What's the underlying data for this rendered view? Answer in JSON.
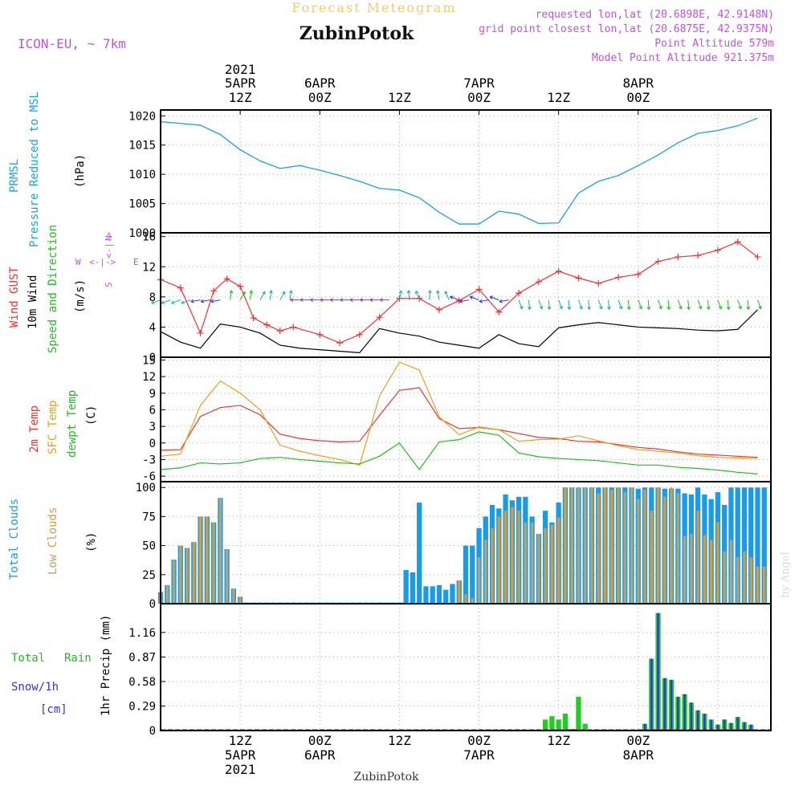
{
  "header": {
    "title": "Forecast Meteogram",
    "location": "ZubinPotok",
    "model": "ICON-EU, ~ 7km",
    "requested": "requested lon,lat (20.6898E, 42.9148N)",
    "closest": "grid point closest lon,lat (20.6875E, 42.9375N)",
    "point_alt": "Point Altitude 579m",
    "model_alt": "Model Point Altitude 921.375m",
    "credit": "by Angel",
    "bottom_location": "ZubinPotok"
  },
  "colors": {
    "pressure": "#1aa0e6",
    "gust": "#ee3333",
    "wind": "#000000",
    "wind_dir": "#22bb22",
    "t2m": "#ee3333",
    "sfc": "#e8a020",
    "dewpt": "#22bb22",
    "total_clouds": "#1a9be8",
    "low_clouds": "#c8a055",
    "rain": "#22cc22",
    "snow": "#3333dd",
    "magenta": "#bb55dd"
  },
  "time_axis": {
    "top_labels": [
      {
        "day": "2021",
        "date": "5APR",
        "hour": "12Z"
      },
      {
        "day": "",
        "date": "6APR",
        "hour": "00Z"
      },
      {
        "day": "",
        "date": "",
        "hour": "12Z"
      },
      {
        "day": "",
        "date": "7APR",
        "hour": "00Z"
      },
      {
        "day": "",
        "date": "",
        "hour": "12Z"
      },
      {
        "day": "",
        "date": "8APR",
        "hour": "00Z"
      }
    ],
    "bottom_labels": [
      {
        "hour": "12Z",
        "date": "5APR",
        "year": "2021"
      },
      {
        "hour": "00Z",
        "date": "6APR",
        "year": ""
      },
      {
        "hour": "12Z",
        "date": "",
        "year": ""
      },
      {
        "hour": "00Z",
        "date": "7APR",
        "year": ""
      },
      {
        "hour": "12Z",
        "date": "",
        "year": ""
      },
      {
        "hour": "00Z",
        "date": "8APR",
        "year": ""
      }
    ]
  },
  "panels": {
    "pressure": {
      "label1": "PRMSL",
      "label2": "Pressure Reduced to MSL",
      "unit": "(hPa)"
    },
    "wind": {
      "gust": "Wind GUST",
      "wind": "10m Wind",
      "dir": "Speed and Direction",
      "unit": "(m/s)",
      "compass_n": "N",
      "compass_s": "S",
      "compass_w": "W",
      "compass_e": "E"
    },
    "temp": {
      "t2m": "2m Temp",
      "sfc": "SFC Temp",
      "dewpt": "dewpt Temp",
      "unit": "(C)"
    },
    "clouds": {
      "total": "Total Clouds",
      "low": "Low Clouds",
      "unit": "(%)"
    },
    "precip": {
      "rain1": "Total",
      "rain2": "Rain",
      "snow": "Snow/1h",
      "snow_unit": "[cm]",
      "unit": "1hr Precip (mm)"
    }
  },
  "chart_data": [
    {
      "type": "line",
      "title": "PRMSL Pressure Reduced to MSL",
      "ylabel": "(hPa)",
      "x_unit": "hours since 2021-04-05 00Z",
      "ylim": [
        1000,
        1021
      ],
      "yticks": [
        1000,
        1005,
        1010,
        1015,
        1020
      ],
      "series": [
        {
          "name": "PRMSL",
          "x": [
            0,
            3,
            6,
            9,
            12,
            15,
            18,
            21,
            24,
            27,
            30,
            33,
            36,
            39,
            42,
            45,
            48,
            51,
            54,
            57,
            60,
            63,
            66,
            69,
            72,
            75,
            78,
            81,
            84,
            87,
            90
          ],
          "y": [
            1019,
            1018.7,
            1018.4,
            1016.8,
            1014.2,
            1012.3,
            1011.0,
            1011.5,
            1010.7,
            1009.8,
            1008.8,
            1007.6,
            1007.3,
            1006.0,
            1003.5,
            1001.5,
            1001.5,
            1003.7,
            1003.2,
            1001.6,
            1001.7,
            1006.8,
            1008.8,
            1009.8,
            1011.5,
            1013.3,
            1015.4,
            1017.0,
            1017.5,
            1018.3,
            1019.6
          ]
        }
      ]
    },
    {
      "type": "line",
      "title": "Wind GUST / 10m Wind Speed and Direction",
      "ylabel": "(m/s)",
      "ylim": [
        0,
        16.5
      ],
      "yticks": [
        0,
        4,
        8,
        12,
        16
      ],
      "series": [
        {
          "name": "Wind GUST",
          "x": [
            0,
            3,
            6,
            8,
            10,
            12,
            14,
            16,
            18,
            20,
            24,
            27,
            30,
            33,
            36,
            39,
            42,
            45,
            48,
            51,
            54,
            57,
            60,
            63,
            66,
            69,
            72,
            75,
            78,
            81,
            84,
            87,
            90
          ],
          "y": [
            10.3,
            9.2,
            3.2,
            8.8,
            10.4,
            9.4,
            5.2,
            4.3,
            3.5,
            4.0,
            3.0,
            1.9,
            3.0,
            5.3,
            7.8,
            7.8,
            6.3,
            7.5,
            9.0,
            6.0,
            8.5,
            10.0,
            11.4,
            10.5,
            9.8,
            10.6,
            11.0,
            12.7,
            13.3,
            13.5,
            14.2,
            15.3,
            13.3
          ]
        },
        {
          "name": "10m Wind",
          "x": [
            0,
            3,
            6,
            9,
            12,
            15,
            18,
            21,
            24,
            27,
            30,
            33,
            36,
            39,
            42,
            45,
            48,
            51,
            54,
            57,
            60,
            63,
            66,
            69,
            72,
            75,
            78,
            81,
            84,
            87,
            90
          ],
          "y": [
            3.4,
            2.0,
            1.2,
            4.4,
            4.0,
            3.2,
            1.6,
            1.2,
            1.0,
            0.8,
            0.6,
            3.8,
            3.2,
            2.8,
            2.0,
            1.6,
            1.2,
            3.0,
            1.8,
            1.4,
            3.9,
            4.3,
            4.6,
            4.3,
            4.0,
            3.9,
            3.8,
            3.6,
            3.5,
            3.7,
            6.3
          ]
        }
      ]
    },
    {
      "type": "line",
      "title": "2m Temp / SFC Temp / dewpt Temp",
      "ylabel": "(C)",
      "ylim": [
        -7,
        15.5
      ],
      "yticks": [
        -6,
        -3,
        0,
        3,
        6,
        9,
        12,
        15
      ],
      "series": [
        {
          "name": "2m Temp",
          "x": [
            0,
            3,
            6,
            9,
            12,
            15,
            18,
            21,
            24,
            27,
            30,
            33,
            36,
            39,
            42,
            45,
            48,
            51,
            54,
            57,
            60,
            63,
            66,
            69,
            72,
            75,
            78,
            81,
            84,
            87,
            90
          ],
          "y": [
            -1.3,
            -1.2,
            4.8,
            6.4,
            6.8,
            5.1,
            1.6,
            0.8,
            0.4,
            0.2,
            0.3,
            5.0,
            9.5,
            10.0,
            4.4,
            2.6,
            2.8,
            2.4,
            1.7,
            1.0,
            0.8,
            0.3,
            0.2,
            -0.3,
            -0.8,
            -1.1,
            -1.6,
            -2.0,
            -2.2,
            -2.4,
            -2.6
          ]
        },
        {
          "name": "SFC Temp",
          "x": [
            0,
            3,
            6,
            9,
            12,
            15,
            18,
            21,
            24,
            27,
            30,
            33,
            36,
            39,
            42,
            45,
            48,
            51,
            54,
            57,
            60,
            63,
            66,
            69,
            72,
            75,
            78,
            81,
            84,
            87,
            90
          ],
          "y": [
            -2.4,
            -2.0,
            6.8,
            11.2,
            9.0,
            6.0,
            -0.4,
            -1.5,
            -2.3,
            -3.0,
            -4.0,
            8.5,
            14.6,
            13.2,
            4.7,
            1.5,
            2.9,
            2.4,
            0.3,
            0.6,
            0.7,
            1.3,
            0.4,
            -0.5,
            -1.2,
            -1.5,
            -1.8,
            -2.3,
            -2.6,
            -2.7,
            -2.8
          ]
        },
        {
          "name": "dewpt Temp",
          "x": [
            0,
            3,
            6,
            9,
            12,
            15,
            18,
            21,
            24,
            27,
            30,
            33,
            36,
            39,
            42,
            45,
            48,
            51,
            54,
            57,
            60,
            63,
            66,
            69,
            72,
            75,
            78,
            81,
            84,
            87,
            90
          ],
          "y": [
            -4.8,
            -4.5,
            -3.6,
            -3.8,
            -3.6,
            -2.8,
            -2.6,
            -3.0,
            -3.3,
            -3.6,
            -3.8,
            -2.4,
            0.0,
            -4.8,
            0.2,
            0.6,
            2.0,
            1.4,
            -1.8,
            -2.5,
            -2.8,
            -3.0,
            -3.2,
            -3.6,
            -4.0,
            -4.0,
            -4.4,
            -4.6,
            -4.9,
            -5.3,
            -5.6
          ]
        }
      ]
    },
    {
      "type": "bar",
      "title": "Total Clouds / Low Clouds",
      "ylabel": "(%)",
      "ylim": [
        0,
        105
      ],
      "yticks": [
        0,
        25,
        50,
        75,
        100
      ],
      "series": [
        {
          "name": "Total Clouds",
          "values": [
            10,
            16,
            38,
            50,
            48,
            53,
            75,
            75,
            70,
            91,
            47,
            13,
            6,
            1,
            1,
            1,
            1,
            1,
            1,
            1,
            1,
            1,
            1,
            1,
            1,
            1,
            1,
            1,
            1,
            1,
            1,
            1,
            1,
            1,
            1,
            1,
            1,
            29,
            27,
            87,
            15,
            15,
            16,
            12,
            17,
            20,
            50,
            50,
            65,
            75,
            85,
            82,
            94,
            89,
            92,
            92,
            75,
            60,
            80,
            70,
            87,
            100,
            100,
            100,
            100,
            100,
            100,
            100,
            100,
            100,
            100,
            100,
            99,
            100,
            100,
            100,
            99,
            99,
            99,
            95,
            94,
            100,
            94,
            90,
            96,
            85,
            100,
            100,
            100,
            100,
            100,
            100
          ]
        },
        {
          "name": "Low Clouds",
          "values": [
            10,
            16,
            38,
            50,
            48,
            53,
            75,
            75,
            70,
            91,
            47,
            13,
            6,
            1,
            1,
            1,
            1,
            1,
            1,
            1,
            1,
            1,
            1,
            1,
            1,
            1,
            1,
            1,
            1,
            1,
            1,
            1,
            1,
            1,
            1,
            1,
            1,
            1,
            1,
            1,
            1,
            1,
            1,
            1,
            1,
            20,
            8,
            5,
            40,
            55,
            65,
            75,
            80,
            83,
            80,
            70,
            70,
            60,
            65,
            68,
            74,
            100,
            100,
            100,
            100,
            100,
            95,
            100,
            98,
            100,
            96,
            100,
            90,
            98,
            80,
            100,
            92,
            100,
            95,
            58,
            60,
            80,
            59,
            55,
            70,
            45,
            55,
            40,
            45,
            40,
            32,
            32
          ]
        }
      ]
    },
    {
      "type": "bar",
      "title": "1hr Precip (mm)",
      "ylabel": "1hr Precip (mm)",
      "ylim": [
        0,
        1.5
      ],
      "yticks": [
        0,
        0.29,
        0.58,
        0.87,
        1.16
      ],
      "series": [
        {
          "name": "Total Rain",
          "x": [
            58,
            59,
            60,
            61,
            62,
            63,
            64,
            65,
            66,
            67,
            73,
            74,
            75,
            76,
            77,
            78,
            79,
            80,
            81,
            82,
            83,
            84,
            85,
            86,
            87,
            88,
            89
          ],
          "values": [
            0.13,
            0.17,
            0.13,
            0.2,
            0.02,
            0.4,
            0.08,
            0.01,
            0.01,
            0.01,
            0.08,
            0.85,
            1.39,
            0.62,
            0.6,
            0.4,
            0.43,
            0.33,
            0.24,
            0.2,
            0.13,
            0.07,
            0.13,
            0.09,
            0.16,
            0.1,
            0.07
          ]
        },
        {
          "name": "Snow/1h",
          "x": [
            73,
            74,
            75,
            76,
            77,
            78,
            79,
            80,
            81,
            82,
            83,
            84,
            85,
            86,
            87,
            88,
            89
          ],
          "values": [
            0.08,
            0.85,
            1.39,
            0.62,
            0.6,
            0.4,
            0.43,
            0.33,
            0.24,
            0.2,
            0.13,
            0.07,
            0.13,
            0.09,
            0.16,
            0.1,
            0.07
          ]
        }
      ]
    }
  ]
}
